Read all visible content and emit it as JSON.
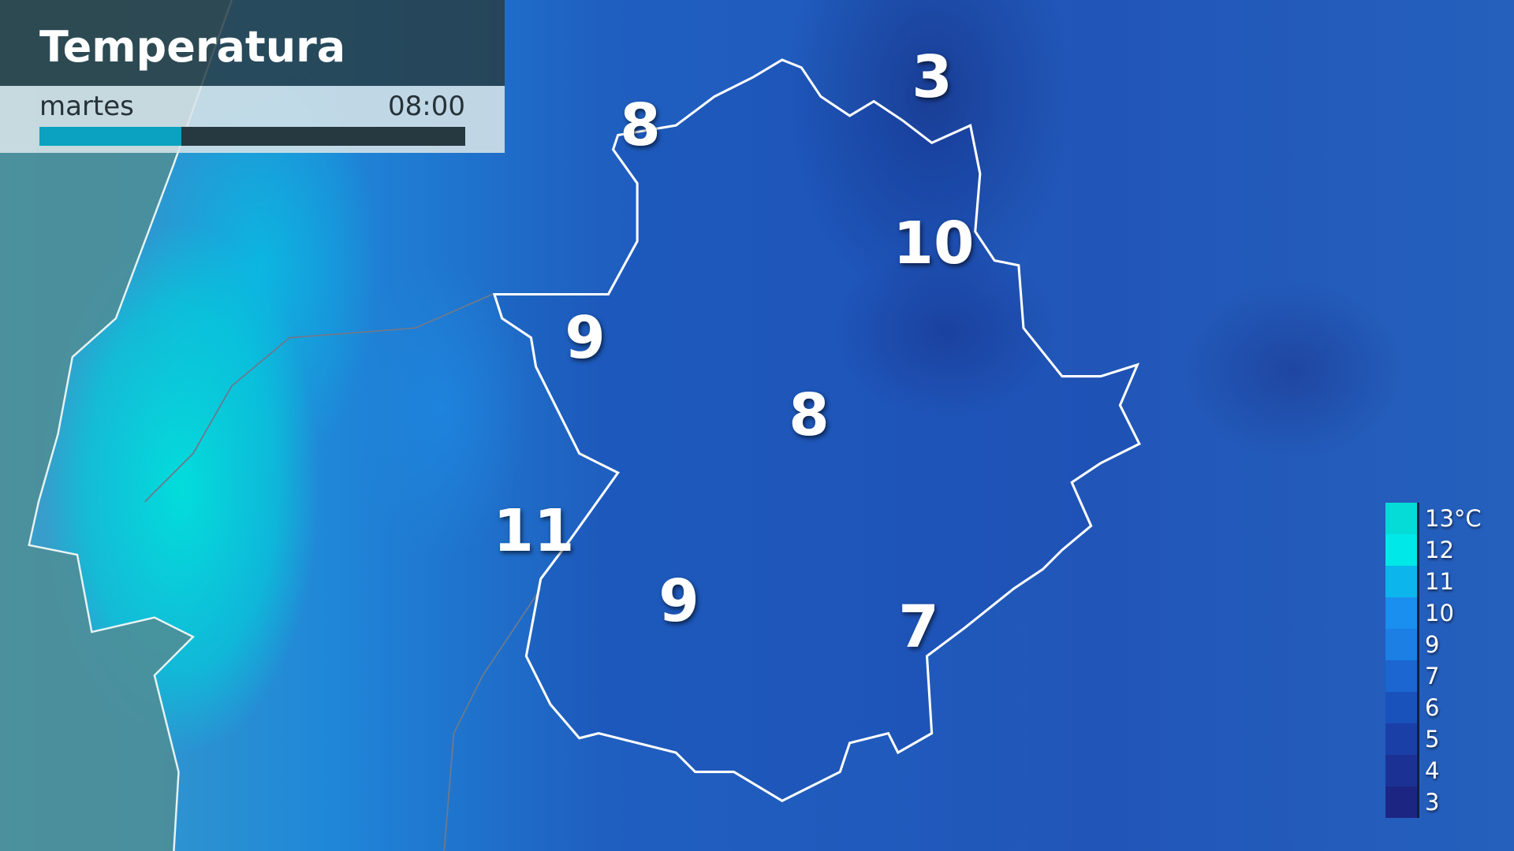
{
  "header": {
    "title": "Temperatura",
    "day": "martes",
    "time": "08:00",
    "progress": 0.334
  },
  "map_labels": [
    {
      "value": "8"
    },
    {
      "value": "3"
    },
    {
      "value": "10"
    },
    {
      "value": "9"
    },
    {
      "value": "8"
    },
    {
      "value": "11"
    },
    {
      "value": "9"
    },
    {
      "value": "7"
    }
  ],
  "legend": {
    "unit": "°C",
    "items": [
      {
        "label": "13°C",
        "color": "#05dcd8"
      },
      {
        "label": "12",
        "color": "#00e8e8"
      },
      {
        "label": "11",
        "color": "#0cb6ec"
      },
      {
        "label": "10",
        "color": "#1a8ff0"
      },
      {
        "label": "9",
        "color": "#1c7fe4"
      },
      {
        "label": "7",
        "color": "#1b66d0"
      },
      {
        "label": "6",
        "color": "#1a52bc"
      },
      {
        "label": "5",
        "color": "#1a40a8"
      },
      {
        "label": "4",
        "color": "#1b3294"
      },
      {
        "label": "3",
        "color": "#1c2682"
      }
    ]
  },
  "colors": {
    "title_bg": "#283e46",
    "progress_fill": "#0aa2c0",
    "progress_track": "#263840",
    "region_border": "#ffffff"
  }
}
